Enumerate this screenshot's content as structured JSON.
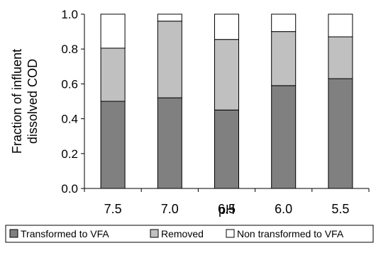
{
  "chart_data": {
    "type": "bar",
    "stacked": true,
    "categories": [
      "7.5",
      "7.0",
      "6.5",
      "6.0",
      "5.5"
    ],
    "series": [
      {
        "name": "Transformed to VFA",
        "values": [
          0.5,
          0.52,
          0.45,
          0.59,
          0.63
        ],
        "color": "#808080"
      },
      {
        "name": "Removed",
        "values": [
          0.305,
          0.44,
          0.405,
          0.31,
          0.24
        ],
        "color": "#c0c0c0"
      },
      {
        "name": "Non transformed to VFA",
        "values": [
          0.195,
          0.04,
          0.145,
          0.1,
          0.13
        ],
        "color": "#ffffff"
      }
    ],
    "title": "",
    "xlabel": "pH",
    "ylabel_lines": [
      "Fraction of influent",
      "dissolved COD"
    ],
    "ylim": [
      0,
      1.0
    ],
    "yticks": [
      "0.0",
      "0.2",
      "0.4",
      "0.6",
      "0.8",
      "1.0"
    ],
    "grid": false,
    "legend_position": "bottom"
  }
}
